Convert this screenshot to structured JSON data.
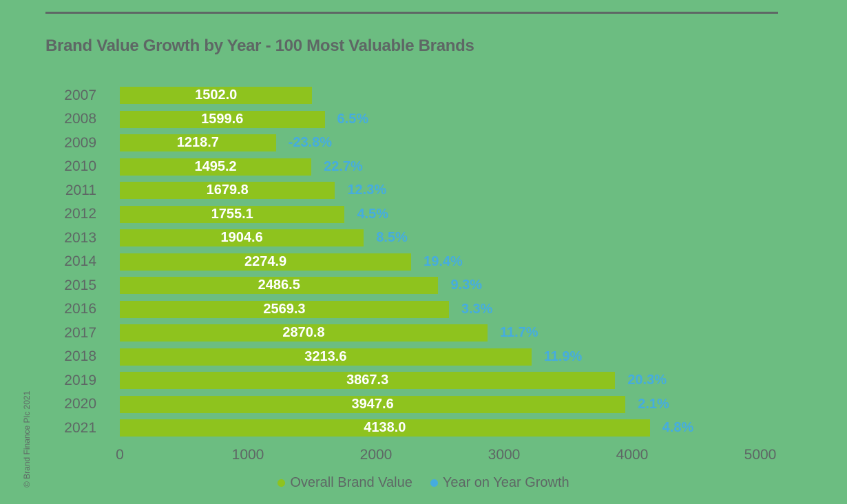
{
  "page": {
    "title": "Brand Value Growth by Year - 100 Most Valuable Brands",
    "copyright": "© Brand Finance Plc 2021"
  },
  "colors": {
    "background": "#6cbd81",
    "bar": "#8ec31e",
    "growth_blue": "#45acdf",
    "text_gray": "#5e6765",
    "bar_label_white": "#ffffff"
  },
  "chart_data": {
    "type": "bar",
    "orientation": "horizontal",
    "title": "Brand Value Growth by Year - 100 Most Valuable Brands",
    "categories": [
      "2007",
      "2008",
      "2009",
      "2010",
      "2011",
      "2012",
      "2013",
      "2014",
      "2015",
      "2016",
      "2017",
      "2018",
      "2019",
      "2020",
      "2021"
    ],
    "series": [
      {
        "name": "Overall Brand Value",
        "values": [
          1502.0,
          1599.6,
          1218.7,
          1495.2,
          1679.8,
          1755.1,
          1904.6,
          2274.9,
          2486.5,
          2569.3,
          2870.8,
          3213.6,
          3867.3,
          3947.6,
          4138.0
        ]
      },
      {
        "name": "Year on Year Growth",
        "unit": "%",
        "values": [
          null,
          6.5,
          -23.8,
          22.7,
          12.3,
          4.5,
          8.5,
          19.4,
          9.3,
          3.3,
          11.7,
          11.9,
          20.3,
          2.1,
          4.8
        ]
      }
    ],
    "bar_labels": [
      "1502.0",
      "1599.6",
      "1218.7",
      "1495.2",
      "1679.8",
      "1755.1",
      "1904.6",
      "2274.9",
      "2486.5",
      "2569.3",
      "2870.8",
      "3213.6",
      "3867.3",
      "3947.6",
      "4138.0"
    ],
    "growth_labels": [
      "",
      "6.5%",
      "-23.8%",
      "22.7%",
      "12.3%",
      "4.5%",
      "8.5%",
      "19.4%",
      "9.3%",
      "3.3%",
      "11.7%",
      "11.9%",
      "20.3%",
      "2.1%",
      "4.8%"
    ],
    "xlim": [
      0,
      5000
    ],
    "x_ticks": [
      "0",
      "1000",
      "2000",
      "3000",
      "4000",
      "5000"
    ],
    "grid": false,
    "legend_position": "bottom",
    "legend": [
      {
        "label": "Overall Brand Value",
        "swatch": "#8ec31e"
      },
      {
        "label": "Year on Year Growth",
        "swatch": "#45acdf"
      }
    ]
  }
}
